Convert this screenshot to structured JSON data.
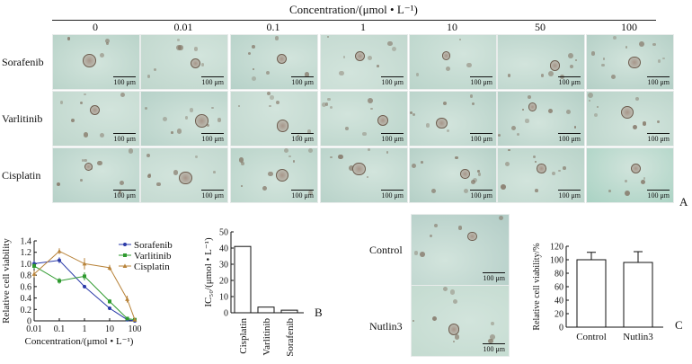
{
  "figure": {
    "top_axis_label": "Concentration/(μmol • L⁻¹)",
    "concentrations": [
      "0",
      "0.01",
      "0.1",
      "1",
      "10",
      "50",
      "100"
    ],
    "rows": [
      "Sorafenib",
      "Varlitinib",
      "Cisplatin"
    ],
    "scale_bar": "100 μm",
    "panel_a_label": "A",
    "panel_b_label": "B",
    "panel_c_label": "C",
    "micro_colors": {
      "tile_base": "#bcd6cc",
      "tile_light": "#d2e4dc",
      "cell": "#7f6f5f"
    }
  },
  "chart_data": [
    {
      "type": "line",
      "ylabel": "Relative cell viability",
      "xlabel": "Concentration/(μmol • L⁻¹)",
      "x_scale": "log",
      "xlim": [
        0.01,
        100
      ],
      "ylim": [
        0,
        1.4
      ],
      "x_tick_labels": [
        "0.01",
        "0.1",
        "1",
        "10",
        "100"
      ],
      "y_tick_labels": [
        "0",
        "0.2",
        "0.4",
        "0.6",
        "0.8",
        "1.0",
        "1.2",
        "1.4"
      ],
      "legend_position": "top-right",
      "series": [
        {
          "name": "Sorafenib",
          "color": "#2a3aa8",
          "marker": "circle",
          "x": [
            0.01,
            0.1,
            1,
            10,
            50,
            100
          ],
          "y": [
            1.0,
            1.06,
            0.6,
            0.22,
            0.02,
            0.0
          ],
          "err": [
            0.05,
            0.05,
            0.03,
            0.03,
            0.01,
            0.0
          ]
        },
        {
          "name": "Varlitinib",
          "color": "#2f9a2f",
          "marker": "square",
          "x": [
            0.01,
            0.1,
            1,
            10,
            50,
            100
          ],
          "y": [
            0.96,
            0.7,
            0.78,
            0.34,
            0.04,
            0.02
          ],
          "err": [
            0.05,
            0.05,
            0.07,
            0.04,
            0.02,
            0.01
          ]
        },
        {
          "name": "Cisplatin",
          "color": "#b8833a",
          "marker": "triangle",
          "x": [
            0.01,
            0.1,
            1,
            10,
            50,
            100
          ],
          "y": [
            0.82,
            1.22,
            1.0,
            0.93,
            0.38,
            0.02
          ],
          "err": [
            0.06,
            0.05,
            0.1,
            0.05,
            0.06,
            0.01
          ]
        }
      ]
    },
    {
      "type": "bar",
      "ylabel": "IC₅₀/(μmol • L⁻¹)",
      "categories": [
        "Cisplatin",
        "Varlitinib",
        "Sorafenib"
      ],
      "values": [
        41,
        3.5,
        1.6
      ],
      "ylim": [
        0,
        50
      ],
      "y_tick_labels": [
        "0",
        "10",
        "20",
        "30",
        "40",
        "50"
      ]
    },
    {
      "type": "bar",
      "ylabel": "Relative cell viability/%",
      "categories": [
        "Control",
        "Nutlin3"
      ],
      "values": [
        100,
        96
      ],
      "err": [
        11,
        16
      ],
      "ylim": [
        0,
        120
      ],
      "y_tick_labels": [
        "0",
        "20",
        "40",
        "60",
        "80",
        "100",
        "120"
      ]
    }
  ],
  "panel_c": {
    "row_labels": [
      "Control",
      "Nutlin3"
    ],
    "scale_bar": "100 μm"
  }
}
